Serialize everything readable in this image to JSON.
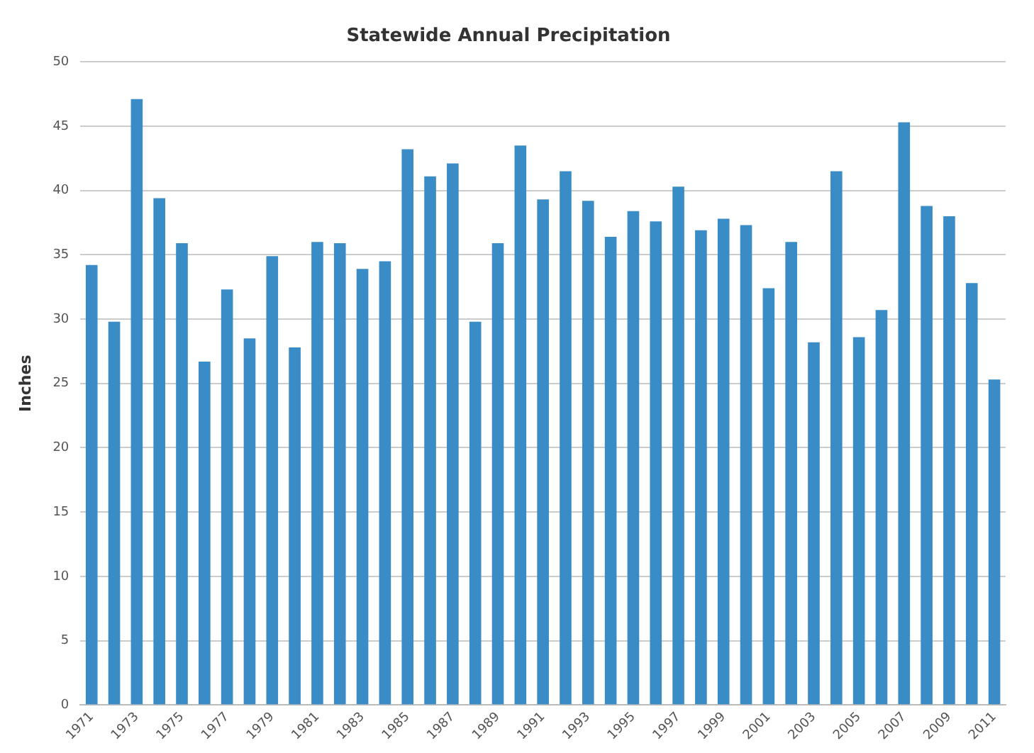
{
  "chart_data": {
    "type": "bar",
    "title": "Statewide Annual Precipitation",
    "ylabel": "Inches",
    "categories": [
      "1971",
      null,
      "1973",
      null,
      "1975",
      null,
      "1977",
      null,
      "1979",
      null,
      "1981",
      null,
      "1983",
      null,
      "1985",
      null,
      "1987",
      null,
      "1989",
      null,
      "1991",
      null,
      "1993",
      null,
      "1995",
      null,
      "1997",
      null,
      "1999",
      null,
      "2001",
      null,
      "2003",
      null,
      "2005",
      null,
      "2007",
      null,
      "2009",
      null,
      "2011"
    ],
    "values": [
      34.2,
      29.8,
      47.1,
      39.4,
      35.9,
      26.7,
      32.3,
      28.5,
      34.9,
      27.8,
      36.0,
      35.9,
      33.9,
      34.5,
      43.2,
      41.1,
      42.1,
      29.8,
      35.9,
      43.5,
      39.3,
      41.5,
      39.2,
      36.4,
      38.4,
      37.6,
      40.3,
      36.9,
      37.8,
      37.3,
      32.4,
      36.0,
      28.2,
      41.5,
      28.6,
      30.7,
      45.3,
      38.8,
      38.0,
      32.8,
      25.3
    ],
    "color": "#3a8cc7",
    "ylim": [
      0,
      50
    ],
    "yticks": [
      0,
      5,
      10,
      15,
      20,
      25,
      30,
      35,
      40,
      45,
      50
    ],
    "grid": "y",
    "legend": false
  }
}
